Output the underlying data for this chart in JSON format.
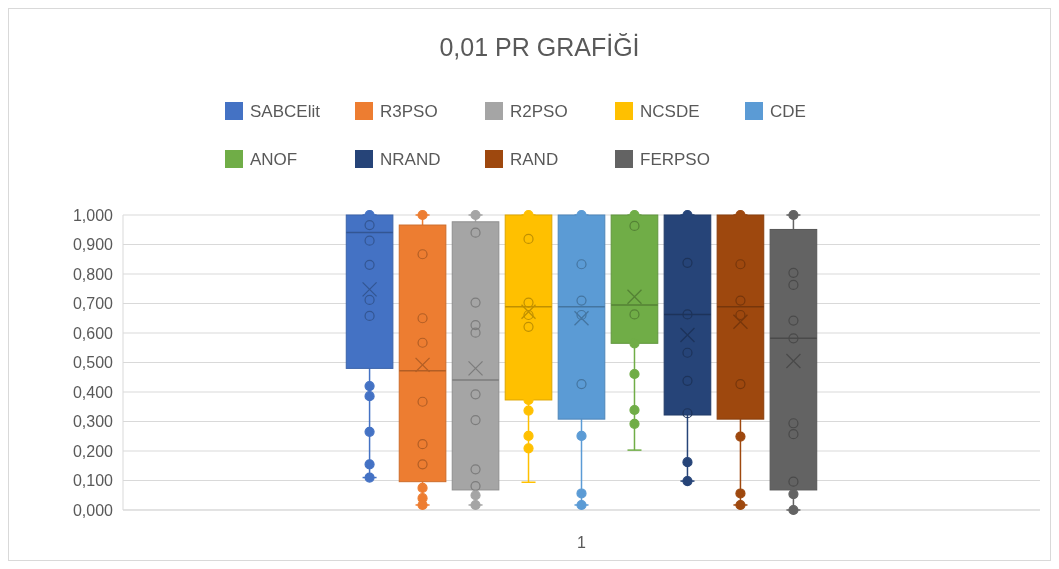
{
  "chart_data": {
    "type": "box",
    "title": "0,01 PR GRAFİĞİ",
    "categories": [
      "1"
    ],
    "legend": "top",
    "grid": "y",
    "marker": "circle",
    "ylim": [
      0,
      1
    ],
    "yticks": [
      {
        "value": 0,
        "label": "0,000"
      },
      {
        "value": 0.1,
        "label": "0,100"
      },
      {
        "value": 0.2,
        "label": "0,200"
      },
      {
        "value": 0.3,
        "label": "0,300"
      },
      {
        "value": 0.4,
        "label": "0,400"
      },
      {
        "value": 0.5,
        "label": "0,500"
      },
      {
        "value": 0.6,
        "label": "0,600"
      },
      {
        "value": 0.7,
        "label": "0,700"
      },
      {
        "value": 0.8,
        "label": "0,800"
      },
      {
        "value": 0.9,
        "label": "0,900"
      },
      {
        "value": 1,
        "label": "1,000"
      }
    ],
    "series": [
      {
        "name": "SABCElit",
        "color": "#4472c4",
        "boxes": [
          {
            "low": 0.11,
            "q1": 0.48,
            "median": 0.941,
            "q3": 1.0,
            "high": 1.0,
            "mean": 0.748,
            "outliers": [
              1.0,
              0.966,
              0.913,
              0.831,
              0.712,
              0.658,
              0.42,
              0.386,
              0.265,
              0.155,
              0.11
            ]
          }
        ]
      },
      {
        "name": "R3PSO",
        "color": "#ed7d31",
        "boxes": [
          {
            "low": 0.017,
            "q1": 0.096,
            "median": 0.472,
            "q3": 0.966,
            "high": 1.0,
            "mean": 0.492,
            "outliers": [
              1.0,
              0.867,
              0.65,
              0.567,
              0.367,
              0.223,
              0.155,
              0.075,
              0.04,
              0.017
            ]
          }
        ]
      },
      {
        "name": "R2PSO",
        "color": "#a5a5a5",
        "boxes": [
          {
            "low": 0.017,
            "q1": 0.068,
            "median": 0.441,
            "q3": 0.977,
            "high": 1.0,
            "mean": 0.48,
            "outliers": [
              1.0,
              0.94,
              0.703,
              0.627,
              0.601,
              0.392,
              0.305,
              0.138,
              0.081,
              0.05,
              0.017
            ]
          }
        ]
      },
      {
        "name": "NCSDE",
        "color": "#ffc000",
        "boxes": [
          {
            "low": 0.094,
            "q1": 0.373,
            "median": 0.689,
            "q3": 1.0,
            "high": 1.0,
            "mean": 0.672,
            "outliers": [
              1.0,
              0.919,
              0.703,
              0.661,
              0.621,
              0.373,
              0.337,
              0.251,
              0.209
            ]
          }
        ]
      },
      {
        "name": "CDE",
        "color": "#5b9bd5",
        "boxes": [
          {
            "low": 0.017,
            "q1": 0.308,
            "median": 0.689,
            "q3": 1.0,
            "high": 1.0,
            "mean": 0.65,
            "outliers": [
              1.0,
              0.833,
              0.71,
              0.661,
              0.427,
              0.251,
              0.056,
              0.017
            ]
          }
        ]
      },
      {
        "name": "ANOF",
        "color": "#70ad47",
        "boxes": [
          {
            "low": 0.203,
            "q1": 0.565,
            "median": 0.695,
            "q3": 1.0,
            "high": 1.0,
            "mean": 0.723,
            "outliers": [
              1.0,
              0.963,
              0.663,
              0.565,
              0.461,
              0.339,
              0.292
            ]
          }
        ]
      },
      {
        "name": "NRAND",
        "color": "#264478",
        "boxes": [
          {
            "low": 0.098,
            "q1": 0.322,
            "median": 0.663,
            "q3": 1.0,
            "high": 1.0,
            "mean": 0.593,
            "outliers": [
              1.0,
              0.838,
              0.663,
              0.533,
              0.438,
              0.328,
              0.162,
              0.098
            ]
          }
        ]
      },
      {
        "name": "RAND",
        "color": "#9e480e",
        "boxes": [
          {
            "low": 0.017,
            "q1": 0.308,
            "median": 0.689,
            "q3": 1.0,
            "high": 1.0,
            "mean": 0.638,
            "outliers": [
              1.0,
              0.833,
              0.71,
              0.661,
              0.427,
              0.249,
              0.056,
              0.017
            ]
          }
        ]
      },
      {
        "name": "FERPSO",
        "color": "#636363",
        "boxes": [
          {
            "low": 0.0,
            "q1": 0.068,
            "median": 0.582,
            "q3": 0.951,
            "high": 1.0,
            "mean": 0.505,
            "outliers": [
              1.0,
              0.804,
              0.763,
              0.642,
              0.582,
              0.294,
              0.257,
              0.096,
              0.054,
              0.0
            ]
          }
        ]
      }
    ]
  }
}
